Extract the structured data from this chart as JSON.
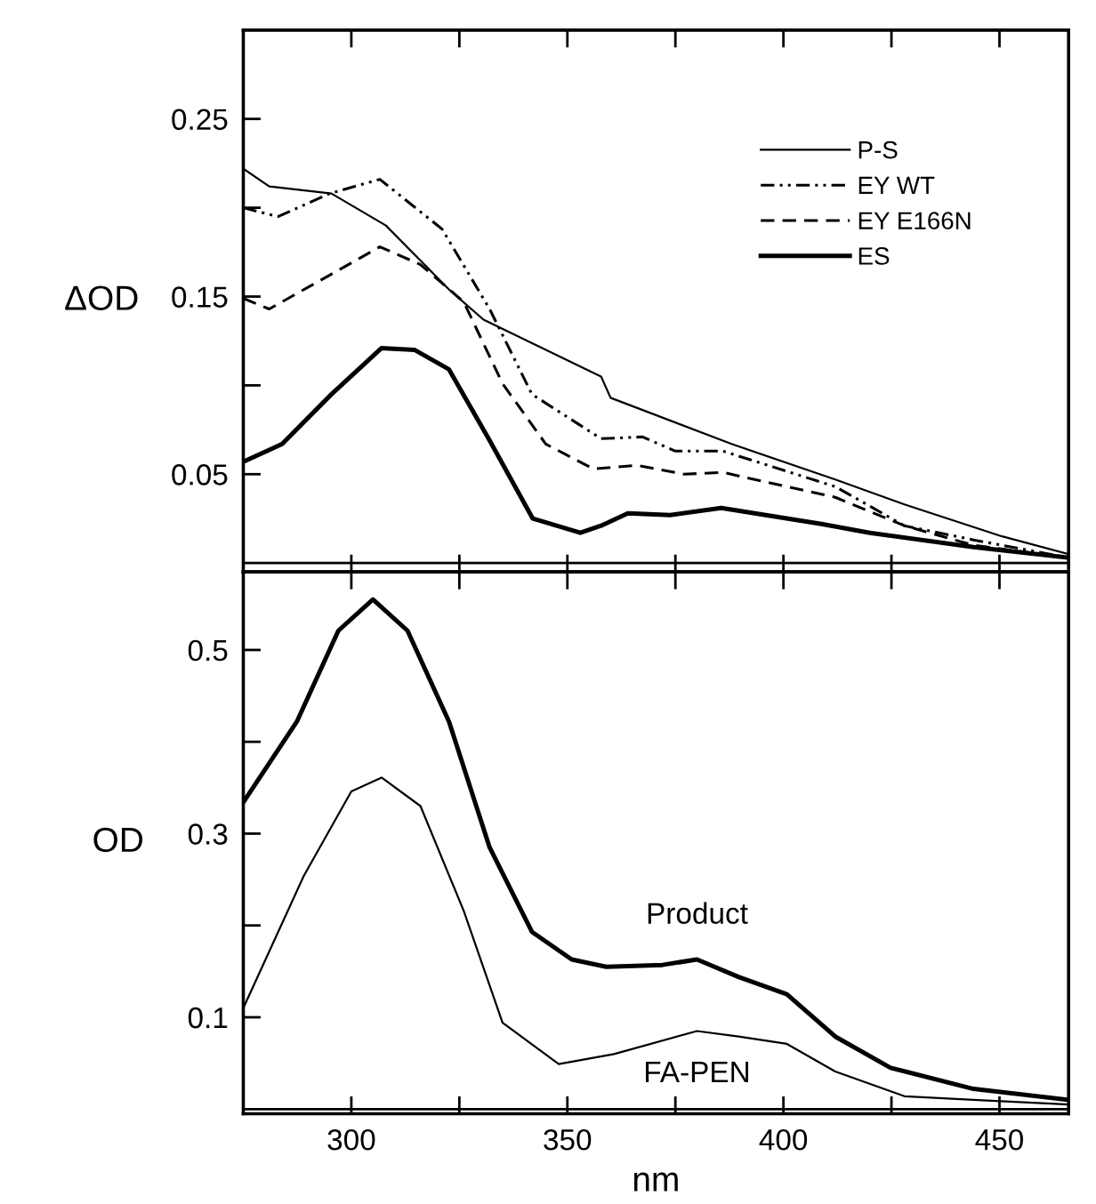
{
  "chart_data": [
    {
      "type": "line",
      "ylabel": "ΔOD",
      "xlim": [
        275,
        466
      ],
      "ylim": [
        -0.005,
        0.3
      ],
      "xticks": [
        {
          "value": 300,
          "label": null
        },
        {
          "value": 325,
          "label": null
        },
        {
          "value": 350,
          "label": null
        },
        {
          "value": 375,
          "label": null
        },
        {
          "value": 400,
          "label": null
        },
        {
          "value": 425,
          "label": null
        },
        {
          "value": 450,
          "label": null
        }
      ],
      "yticks": [
        0.05,
        {
          "value": 0.1,
          "label": null
        },
        0.15,
        {
          "value": 0.2,
          "label": null
        },
        0.25
      ],
      "tick_labels": "y",
      "legend": "top right",
      "grid": false,
      "marker": "none",
      "ref_lines": [
        {
          "axis": "y",
          "value": 0,
          "color": "#000000",
          "line_style": "solid"
        }
      ],
      "series": [
        {
          "name": "P-S",
          "color": "#000000",
          "line_style": "solid",
          "x": [
            275,
            281,
            295.4,
            308,
            322.6,
            330.6,
            357.8,
            360,
            388,
            412,
            428,
            450.6,
            466
          ],
          "values": [
            0.222,
            0.212,
            0.208,
            0.19,
            0.154,
            0.137,
            0.105,
            0.093,
            0.067,
            0.047,
            0.033,
            0.015,
            0.005
          ]
        },
        {
          "name": "EY WT",
          "color": "#000000",
          "line_style": "dashdotdot",
          "x": [
            275,
            283,
            295,
            306.6,
            321,
            332,
            341.8,
            357.8,
            367.4,
            375,
            386,
            412,
            428,
            444,
            466
          ],
          "values": [
            0.2,
            0.195,
            0.208,
            0.216,
            0.188,
            0.143,
            0.095,
            0.07,
            0.071,
            0.063,
            0.063,
            0.043,
            0.021,
            0.013,
            0.003
          ]
        },
        {
          "name": "EY E166N",
          "color": "#000000",
          "line_style": "dashed",
          "x": [
            275,
            281,
            292,
            306.6,
            316,
            326,
            335,
            345,
            356,
            366,
            377,
            386,
            412,
            428,
            444,
            466
          ],
          "values": [
            0.149,
            0.143,
            0.158,
            0.178,
            0.168,
            0.147,
            0.101,
            0.067,
            0.053,
            0.055,
            0.05,
            0.051,
            0.037,
            0.021,
            0.01,
            0.003
          ]
        },
        {
          "name": "ES",
          "color": "#000000",
          "line_style": "solid",
          "x": [
            275,
            284,
            295.4,
            307,
            314.6,
            322.6,
            332,
            342,
            353,
            357.8,
            364,
            373.8,
            385.6,
            408.8,
            420,
            444,
            466
          ],
          "values": [
            0.057,
            0.067,
            0.095,
            0.121,
            0.12,
            0.109,
            0.069,
            0.025,
            0.017,
            0.021,
            0.028,
            0.027,
            0.031,
            0.022,
            0.017,
            0.009,
            0.003
          ]
        }
      ]
    },
    {
      "type": "line",
      "ylabel": "OD",
      "xlabel": "nm",
      "xlim": [
        275,
        466
      ],
      "ylim": [
        -0.005,
        0.585
      ],
      "xticks": [
        300,
        {
          "value": 325,
          "label": null
        },
        350,
        {
          "value": 375,
          "label": null
        },
        400,
        {
          "value": 425,
          "label": null
        },
        450
      ],
      "yticks": [
        0.1,
        {
          "value": 0.2,
          "label": null
        },
        0.3,
        {
          "value": 0.4,
          "label": null
        },
        0.5
      ],
      "grid": false,
      "marker": "none",
      "ref_lines": [
        {
          "axis": "y",
          "value": 0,
          "color": "#000000",
          "line_style": "solid"
        }
      ],
      "series": [
        {
          "name": "Product",
          "color": "#000000",
          "line_style": "solid",
          "x": [
            275,
            287.4,
            297,
            305,
            313,
            322.6,
            332,
            341.8,
            351,
            359,
            372,
            380,
            389.6,
            400.8,
            412,
            424.8,
            444,
            466
          ],
          "values": [
            0.334,
            0.422,
            0.521,
            0.555,
            0.521,
            0.422,
            0.285,
            0.193,
            0.163,
            0.155,
            0.157,
            0.163,
            0.144,
            0.125,
            0.079,
            0.045,
            0.022,
            0.01
          ]
        },
        {
          "name": "FA-PEN",
          "color": "#000000",
          "line_style": "solid",
          "x": [
            275,
            289,
            300,
            307,
            316,
            326,
            335,
            348,
            360.8,
            380,
            389.6,
            400.8,
            412,
            428,
            444,
            466
          ],
          "values": [
            0.11,
            0.254,
            0.346,
            0.361,
            0.33,
            0.216,
            0.094,
            0.049,
            0.06,
            0.085,
            0.079,
            0.071,
            0.041,
            0.014,
            0.01,
            0.005
          ]
        }
      ]
    }
  ]
}
